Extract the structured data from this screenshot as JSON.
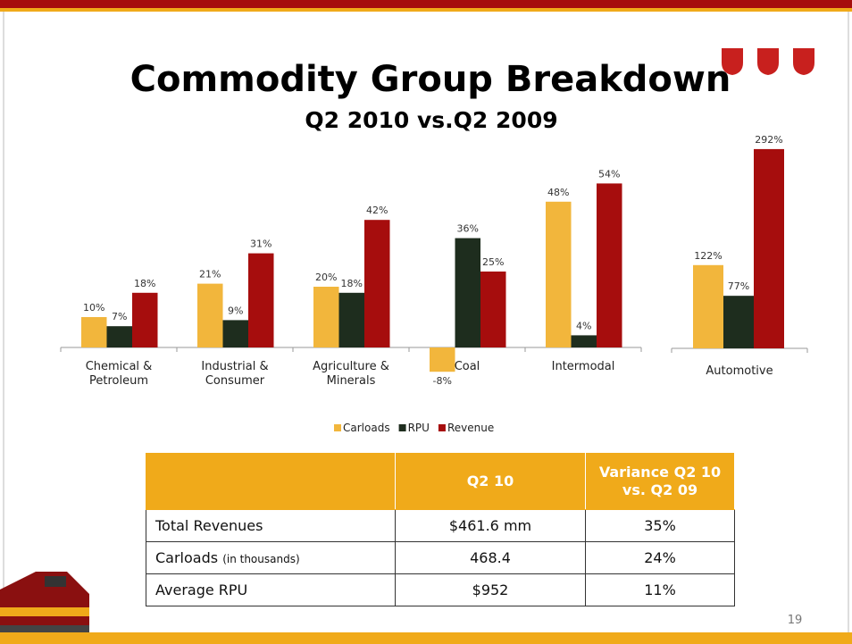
{
  "header": {
    "title": "Commodity Group Breakdown",
    "subtitle": "Q2 2010 vs.Q2 2009"
  },
  "chart_data": [
    {
      "type": "bar",
      "categories": [
        "Chemical & Petroleum",
        "Industrial & Consumer",
        "Agriculture & Minerals",
        "Coal",
        "Intermodal"
      ],
      "series": [
        {
          "name": "Carloads",
          "color": "#f2b63c",
          "values": [
            10,
            21,
            20,
            -8,
            48
          ],
          "value_labels": [
            "10%",
            "21%",
            "20%",
            "-8%",
            "48%"
          ]
        },
        {
          "name": "RPU",
          "color": "#1e2d1e",
          "values": [
            7,
            9,
            18,
            36,
            4
          ],
          "value_labels": [
            "7%",
            "9%",
            "18%",
            "36%",
            "4%"
          ]
        },
        {
          "name": "Revenue",
          "color": "#a60d0d",
          "values": [
            18,
            31,
            42,
            25,
            54
          ],
          "value_labels": [
            "18%",
            "31%",
            "42%",
            "25%",
            "54%"
          ]
        }
      ]
    },
    {
      "type": "bar",
      "categories": [
        "Automotive"
      ],
      "series": [
        {
          "name": "Carloads",
          "color": "#f2b63c",
          "values": [
            122
          ],
          "value_labels": [
            "122%"
          ]
        },
        {
          "name": "RPU",
          "color": "#1e2d1e",
          "values": [
            77
          ],
          "value_labels": [
            "77%"
          ]
        },
        {
          "name": "Revenue",
          "color": "#a60d0d",
          "values": [
            292
          ],
          "value_labels": [
            "292%"
          ]
        }
      ]
    }
  ],
  "table": {
    "columns": [
      "Q2 10",
      "Variance Q2 10 vs. Q2 09"
    ],
    "rows": [
      {
        "label": "Total Revenues",
        "cells": [
          "$461.6 mm",
          "35%"
        ]
      },
      {
        "label": "Carloads",
        "note": "(in thousands)",
        "cells": [
          "468.4",
          "24%"
        ]
      },
      {
        "label": "Average RPU",
        "cells": [
          "$952",
          "11%"
        ]
      }
    ]
  },
  "page_number": "19"
}
